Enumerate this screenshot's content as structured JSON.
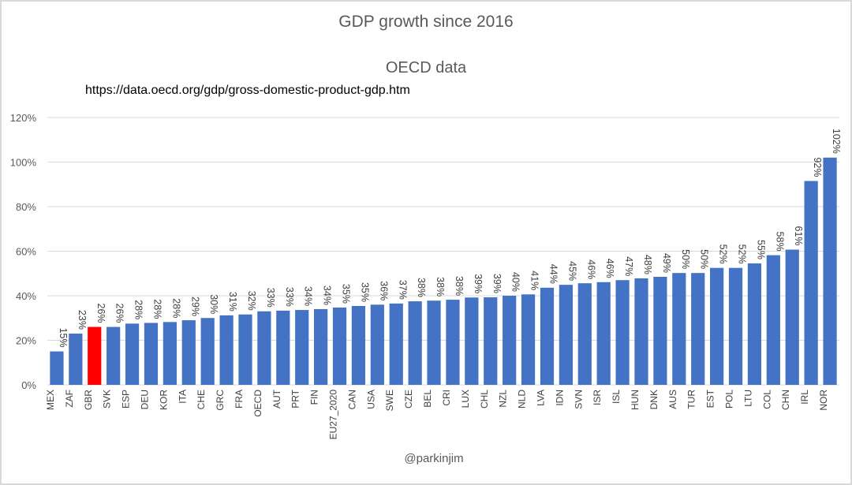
{
  "chart_data": {
    "type": "bar",
    "title": "GDP growth since 2016",
    "subtitle": "OECD data",
    "source_text": "https://data.oecd.org/gdp/gross-domestic-product-gdp.htm",
    "credit": "@parkinjim",
    "xlabel": "",
    "ylabel": "",
    "ylim": [
      0,
      1.2
    ],
    "yticks": [
      0,
      0.2,
      0.4,
      0.6,
      0.8,
      1.0,
      1.2
    ],
    "ytick_labels": [
      "0%",
      "20%",
      "40%",
      "60%",
      "80%",
      "100%",
      "120%"
    ],
    "grid": true,
    "legend": "none",
    "categories": [
      "MEX",
      "ZAF",
      "GBR",
      "SVK",
      "ESP",
      "DEU",
      "KOR",
      "ITA",
      "CHE",
      "GRC",
      "FRA",
      "OECD",
      "AUT",
      "PRT",
      "FIN",
      "EU27_2020",
      "CAN",
      "USA",
      "SWE",
      "CZE",
      "BEL",
      "CRI",
      "LUX",
      "CHL",
      "NZL",
      "NLD",
      "LVA",
      "IDN",
      "SVN",
      "ISR",
      "ISL",
      "HUN",
      "DNK",
      "AUS",
      "TUR",
      "EST",
      "POL",
      "LTU",
      "COL",
      "CHN",
      "IRL",
      "NOR"
    ],
    "values": [
      0.15,
      0.23,
      0.26,
      0.26,
      0.275,
      0.278,
      0.282,
      0.29,
      0.3,
      0.312,
      0.316,
      0.33,
      0.333,
      0.336,
      0.34,
      0.347,
      0.354,
      0.36,
      0.365,
      0.375,
      0.378,
      0.382,
      0.392,
      0.393,
      0.4,
      0.406,
      0.436,
      0.449,
      0.456,
      0.461,
      0.47,
      0.478,
      0.485,
      0.502,
      0.502,
      0.525,
      0.525,
      0.545,
      0.582,
      0.607,
      0.915,
      1.02
    ],
    "data_labels": [
      "15%",
      "23%",
      "26%",
      "26%",
      "28%",
      "28%",
      "28%",
      "29%",
      "30%",
      "31%",
      "32%",
      "33%",
      "33%",
      "34%",
      "34%",
      "35%",
      "35%",
      "36%",
      "37%",
      "38%",
      "38%",
      "38%",
      "39%",
      "39%",
      "40%",
      "41%",
      "44%",
      "45%",
      "46%",
      "46%",
      "47%",
      "48%",
      "49%",
      "50%",
      "50%",
      "52%",
      "52%",
      "55%",
      "58%",
      "61%",
      "92%",
      "102%"
    ],
    "highlight_category": "GBR",
    "colors": {
      "bar": "#4472c4",
      "highlight": "#ff0000",
      "grid": "#d9d9d9"
    }
  }
}
